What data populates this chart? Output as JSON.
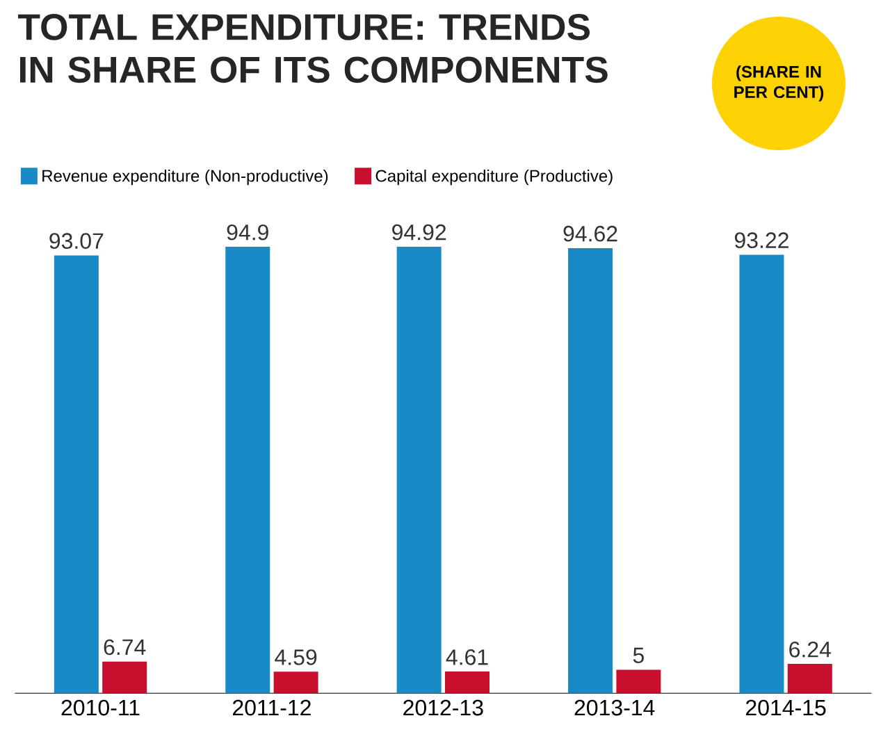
{
  "chart_data": {
    "type": "bar",
    "title": "TOTAL EXPENDITURE: TRENDS IN SHARE OF ITS COMPONENTS",
    "categories": [
      "2010-11",
      "2011-12",
      "2012-13",
      "2013-14",
      "2014-15"
    ],
    "series": [
      {
        "name": "Revenue expenditure (Non-productive)",
        "color": "#1a8ac6",
        "values": [
          93.07,
          94.9,
          94.92,
          94.62,
          93.22
        ]
      },
      {
        "name": "Capital expenditure (Productive)",
        "color": "#c8102e",
        "values": [
          6.74,
          4.59,
          4.61,
          5,
          6.24
        ]
      }
    ],
    "data_labels": true,
    "legend": "top left",
    "annotations": [
      "(SHARE IN PER CENT)"
    ]
  }
}
